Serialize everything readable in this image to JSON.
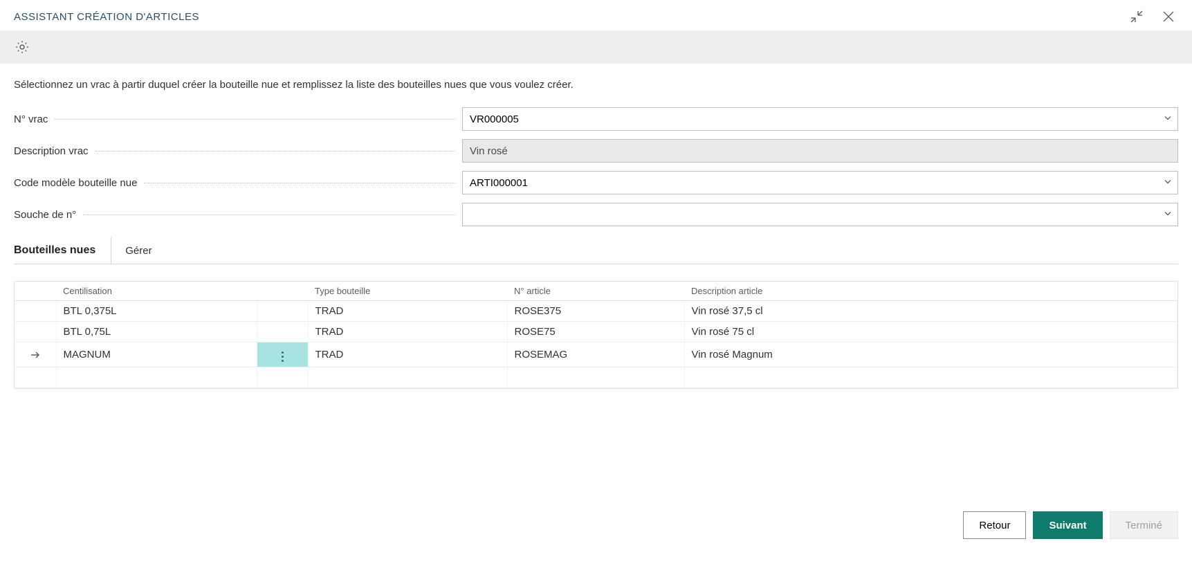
{
  "header": {
    "title": "ASSISTANT CRÉATION D'ARTICLES"
  },
  "colors": {
    "accent": "#0f7b6c",
    "toolbar_bg": "#efefef",
    "cell_highlight": "#a7e3e0",
    "border": "#e1e1e1",
    "title_color": "#2a4c68"
  },
  "intro": "Sélectionnez un vrac à partir duquel créer la bouteille nue et remplissez la liste des bouteilles nues que vous voulez créer.",
  "form": {
    "vrac_no": {
      "label": "N° vrac",
      "value": "VR000005"
    },
    "vrac_desc": {
      "label": "Description vrac",
      "value": "Vin rosé"
    },
    "modele": {
      "label": "Code modèle bouteille nue",
      "value": "ARTI000001"
    },
    "souche": {
      "label": "Souche de n°",
      "value": ""
    }
  },
  "section": {
    "title": "Bouteilles nues",
    "manage": "Gérer"
  },
  "grid": {
    "columns": {
      "centilisation": "Centilisation",
      "type_bouteille": "Type bouteille",
      "no_article": "N° article",
      "description_article": "Description article"
    },
    "rows": [
      {
        "centilisation": "BTL 0,375L",
        "type": "TRAD",
        "no": "ROSE375",
        "desc": "Vin rosé 37,5 cl",
        "active": false
      },
      {
        "centilisation": "BTL 0,75L",
        "type": "TRAD",
        "no": "ROSE75",
        "desc": "Vin rosé 75 cl",
        "active": false
      },
      {
        "centilisation": "MAGNUM",
        "type": "TRAD",
        "no": "ROSEMAG",
        "desc": "Vin rosé Magnum",
        "active": true
      },
      {
        "centilisation": "",
        "type": "",
        "no": "",
        "desc": "",
        "active": false
      }
    ]
  },
  "footer": {
    "back": "Retour",
    "next": "Suivant",
    "finish": "Terminé"
  }
}
